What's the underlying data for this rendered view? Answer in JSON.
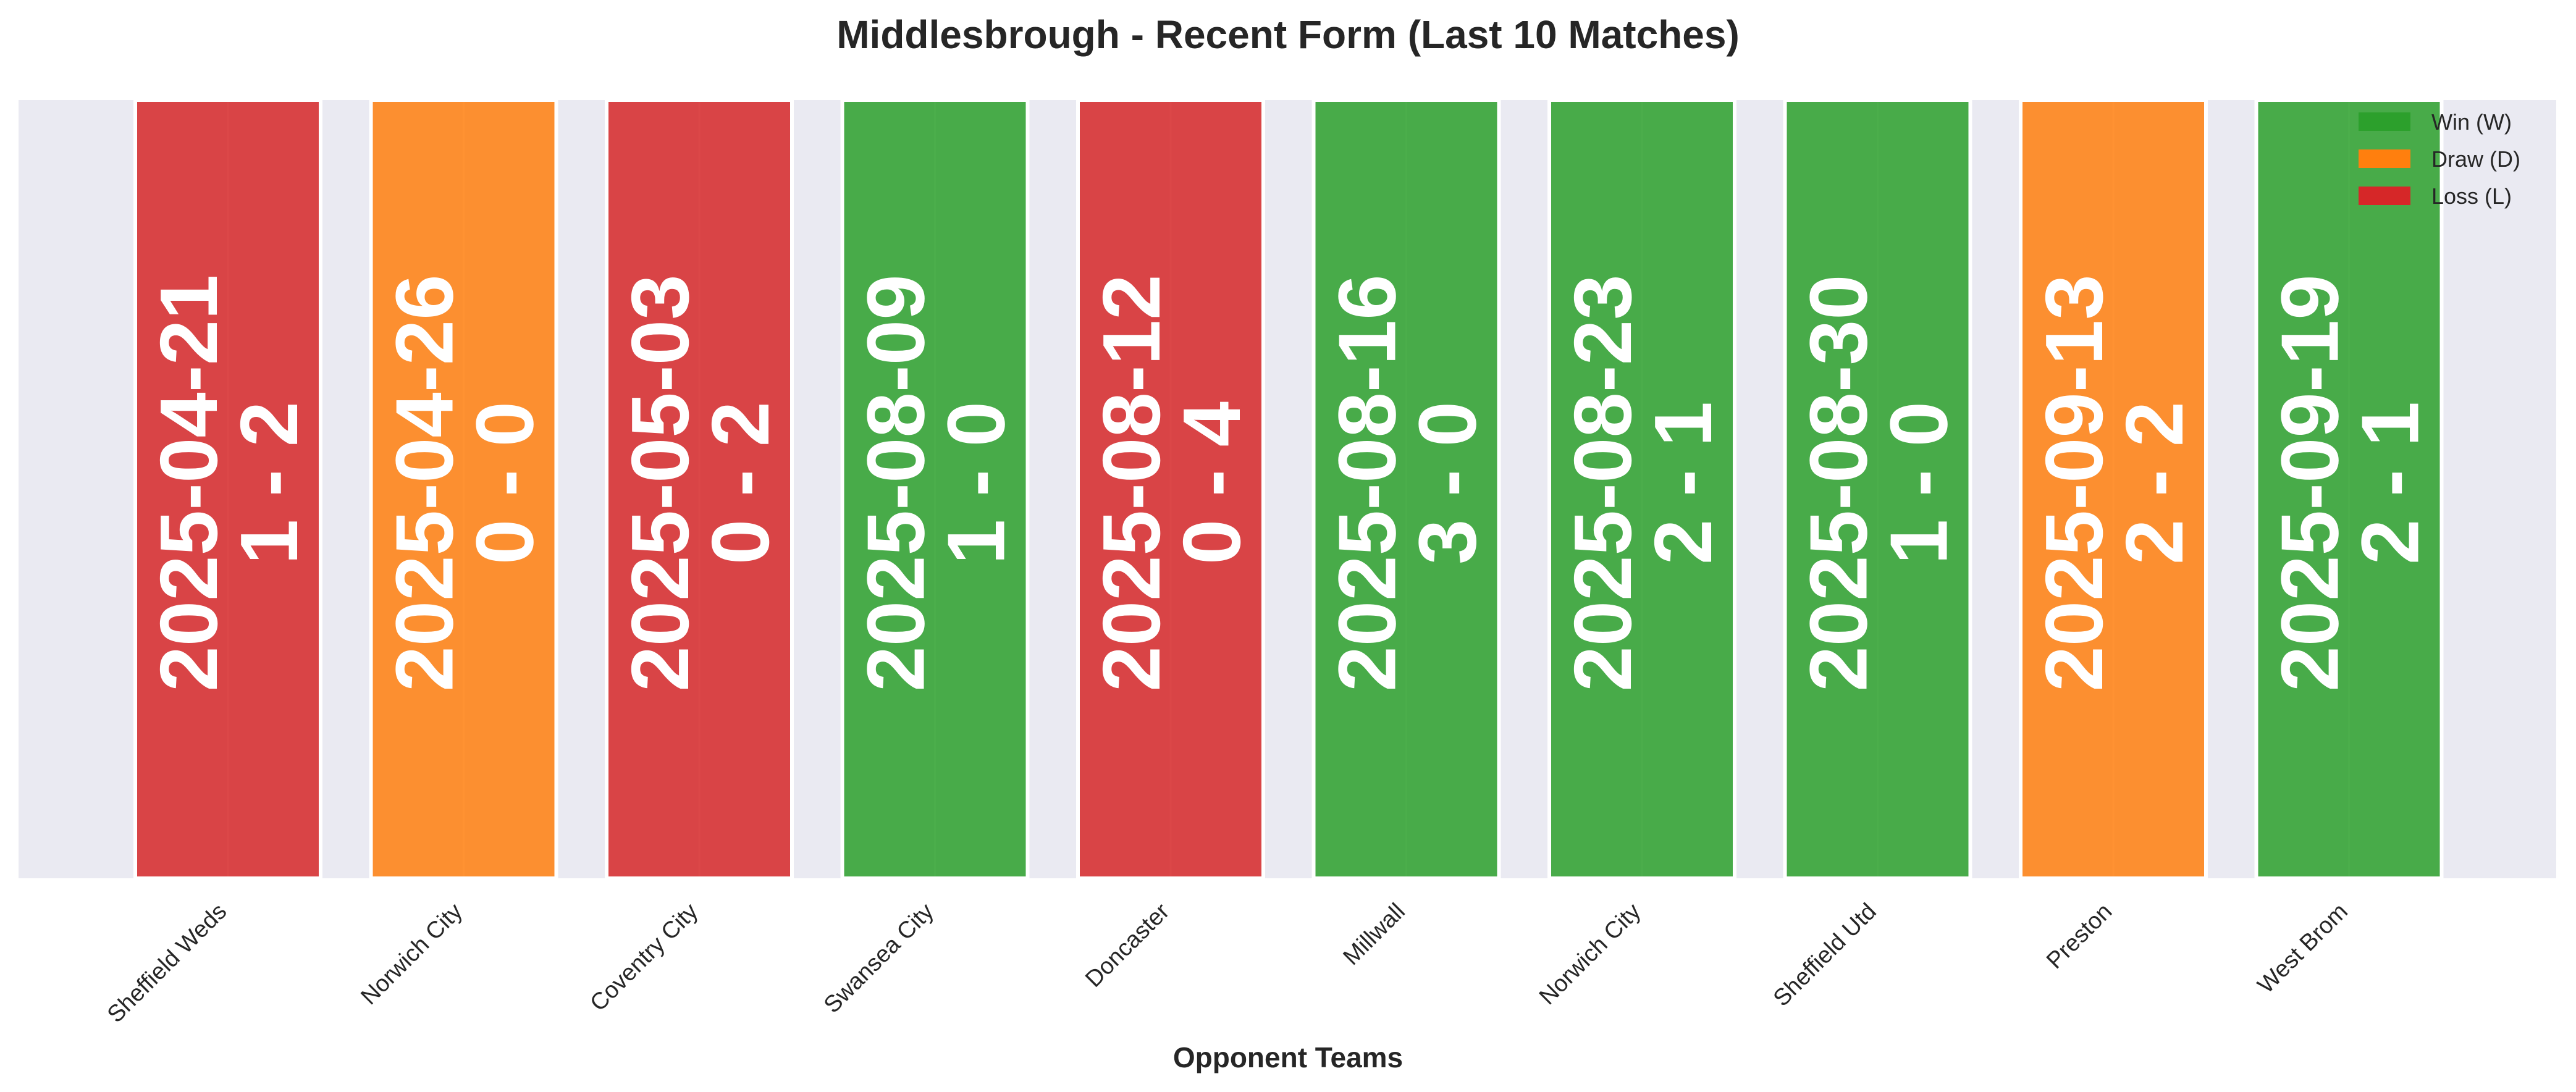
{
  "chart_data": {
    "type": "bar",
    "title": "Middlesbrough - Recent Form (Last 10 Matches)",
    "xlabel": "Opponent Teams",
    "ylabel": "",
    "ylim": [
      0,
      1
    ],
    "grid": true,
    "legend_position": "top-right",
    "categories": [
      "Sheffield Weds",
      "Norwich City",
      "Coventry City",
      "Swansea City",
      "Doncaster",
      "Millwall",
      "Norwich City",
      "Sheffield Utd",
      "Preston",
      "West Brom"
    ],
    "values": [
      1,
      1,
      1,
      1,
      1,
      1,
      1,
      1,
      1,
      1
    ],
    "results": [
      "L",
      "D",
      "L",
      "W",
      "L",
      "W",
      "W",
      "W",
      "D",
      "W"
    ],
    "dates": [
      "2025-04-21",
      "2025-04-26",
      "2025-05-03",
      "2025-08-09",
      "2025-08-12",
      "2025-08-16",
      "2025-08-23",
      "2025-08-30",
      "2025-09-13",
      "2025-09-19"
    ],
    "scores": [
      "1 - 2",
      "0 - 0",
      "0 - 2",
      "1 - 0",
      "0 - 4",
      "3 - 0",
      "2 - 1",
      "1 - 0",
      "2 - 2",
      "2 - 1"
    ],
    "legend": [
      {
        "key": "W",
        "label": "Win (W)"
      },
      {
        "key": "D",
        "label": "Draw (D)"
      },
      {
        "key": "L",
        "label": "Loss (L)"
      }
    ],
    "colors": {
      "W": "#2ca02c",
      "D": "#ff7f0e",
      "L": "#d62728",
      "plot_background": "#eaeaf2",
      "grid": "#ffffff"
    }
  }
}
